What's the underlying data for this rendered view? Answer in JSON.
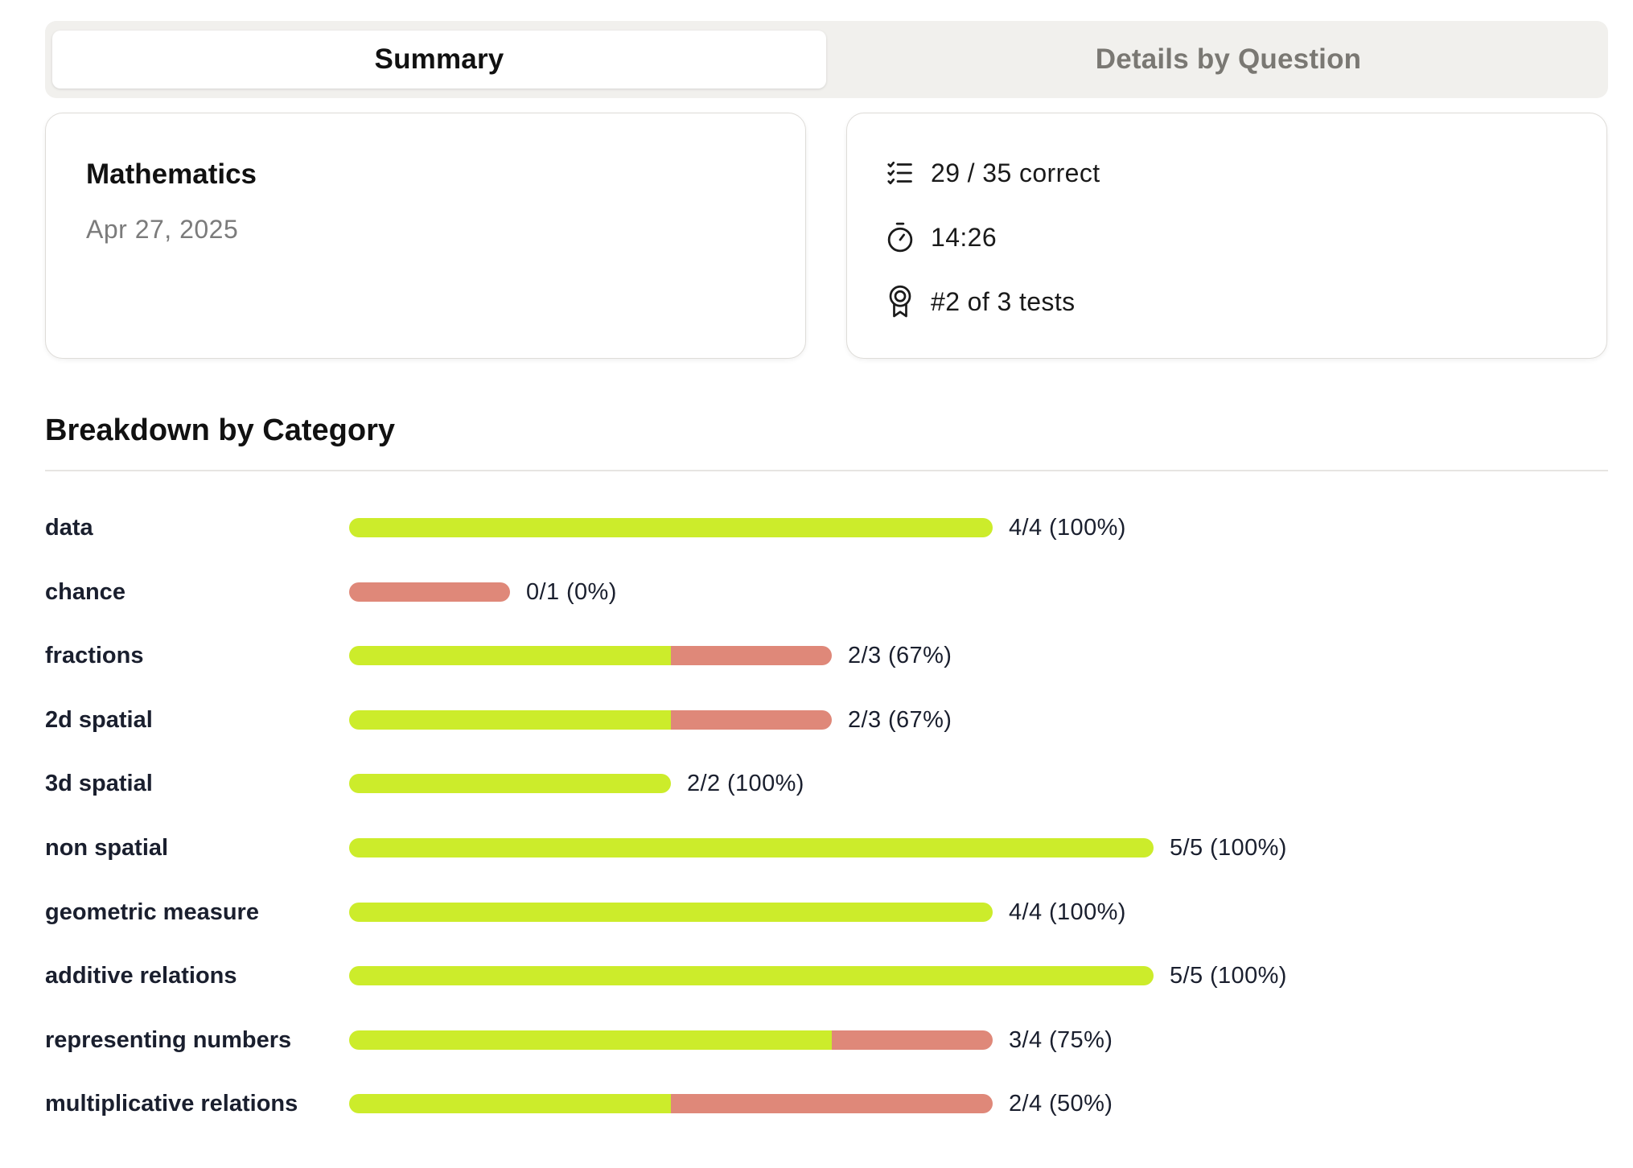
{
  "tabs": {
    "summary": "Summary",
    "details": "Details by Question"
  },
  "test": {
    "subject": "Mathematics",
    "date": "Apr 27, 2025"
  },
  "stats": {
    "correct": "29 / 35 correct",
    "time": "14:26",
    "rank": "#2 of 3 tests"
  },
  "icons": {
    "correct": "checklist-icon",
    "time": "stopwatch-icon",
    "rank": "award-ribbon-icon"
  },
  "colors": {
    "correct": "#ccec2b",
    "incorrect": "#df8879"
  },
  "breakdown": {
    "title": "Breakdown by Category",
    "categories": [
      {
        "label": "data",
        "correct": 4,
        "total": 4,
        "score": "4/4 (100%)"
      },
      {
        "label": "chance",
        "correct": 0,
        "total": 1,
        "score": "0/1 (0%)"
      },
      {
        "label": "fractions",
        "correct": 2,
        "total": 3,
        "score": "2/3 (67%)"
      },
      {
        "label": "2d spatial",
        "correct": 2,
        "total": 3,
        "score": "2/3 (67%)"
      },
      {
        "label": "3d spatial",
        "correct": 2,
        "total": 2,
        "score": "2/2 (100%)"
      },
      {
        "label": "non spatial",
        "correct": 5,
        "total": 5,
        "score": "5/5 (100%)"
      },
      {
        "label": "geometric measure",
        "correct": 4,
        "total": 4,
        "score": "4/4 (100%)"
      },
      {
        "label": "additive relations",
        "correct": 5,
        "total": 5,
        "score": "5/5 (100%)"
      },
      {
        "label": "representing numbers",
        "correct": 3,
        "total": 4,
        "score": "3/4 (75%)"
      },
      {
        "label": "multiplicative relations",
        "correct": 2,
        "total": 4,
        "score": "2/4 (50%)"
      }
    ]
  }
}
